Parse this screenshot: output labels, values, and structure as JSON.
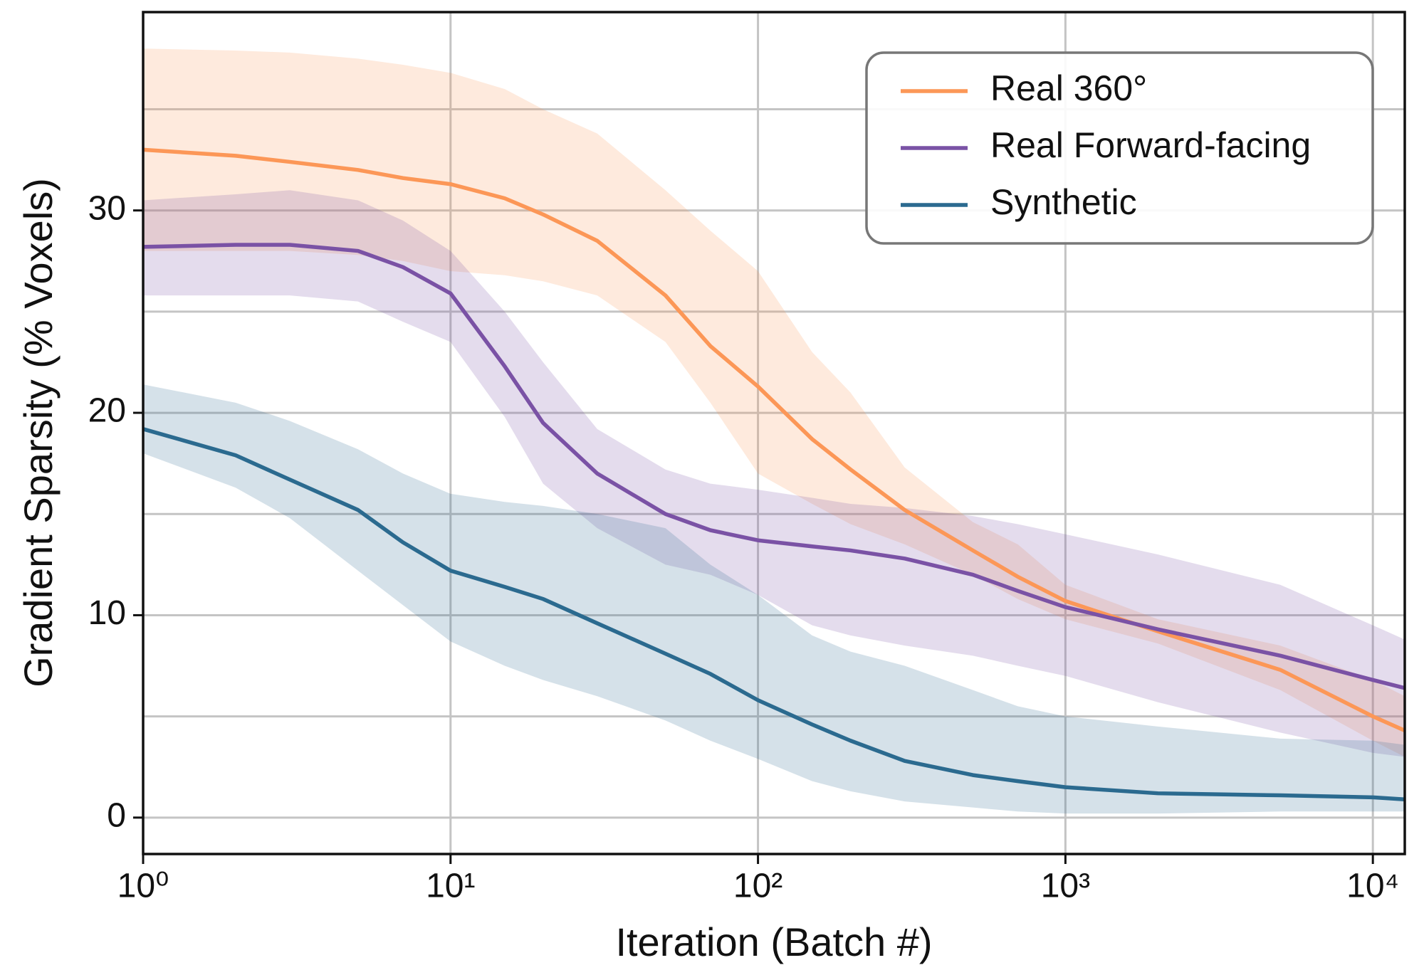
{
  "chart_data": {
    "type": "line",
    "x_label": "Iteration (Batch #)",
    "y_label": "Gradient Sparsity (% Voxels)",
    "x_scale": "log",
    "grid": true,
    "legend": "upper right",
    "xlim": [
      1,
      12700
    ],
    "ylim": [
      -1.8,
      39.8
    ],
    "xticks": [
      {
        "value": 1,
        "label": "10⁰"
      },
      {
        "value": 10,
        "label": "10¹"
      },
      {
        "value": 100,
        "label": "10²"
      },
      {
        "value": 1000,
        "label": "10³"
      },
      {
        "value": 10000,
        "label": "10⁴"
      }
    ],
    "yticks": [
      0,
      10,
      20,
      30
    ],
    "ygrid": [
      0,
      5,
      10,
      15,
      20,
      25,
      30,
      35
    ],
    "x": [
      1,
      2,
      3,
      5,
      7,
      10,
      15,
      20,
      30,
      50,
      70,
      100,
      150,
      200,
      300,
      500,
      700,
      1000,
      2000,
      5000,
      10000,
      12700
    ],
    "series": [
      {
        "name": "Real 360°",
        "color": "#fc9757",
        "values": [
          33,
          32.7,
          32.4,
          32,
          31.6,
          31.3,
          30.6,
          29.8,
          28.5,
          25.8,
          23.3,
          21.3,
          18.7,
          17.2,
          15.2,
          13.2,
          11.9,
          10.7,
          9.2,
          7.3,
          5,
          4.3
        ],
        "upper": [
          38,
          37.9,
          37.8,
          37.5,
          37.2,
          36.8,
          36,
          35,
          33.8,
          31,
          29,
          27,
          23,
          21,
          17.3,
          14.6,
          13.5,
          11.5,
          9.8,
          8.5,
          6.8,
          6
        ],
        "lower": [
          28,
          28,
          28,
          27.8,
          27.5,
          27,
          26.8,
          26.5,
          25.8,
          23.5,
          20.5,
          17,
          15.5,
          14.5,
          13.5,
          12,
          10.8,
          9.8,
          8.6,
          6.3,
          3.8,
          3
        ]
      },
      {
        "name": "Real Forward-facing",
        "color": "#7a52a5",
        "values": [
          28.2,
          28.3,
          28.3,
          28,
          27.2,
          25.9,
          22.3,
          19.5,
          17,
          15,
          14.2,
          13.7,
          13.4,
          13.2,
          12.8,
          12,
          11.2,
          10.4,
          9.3,
          8,
          6.8,
          6.4
        ],
        "upper": [
          30.5,
          30.8,
          31,
          30.5,
          29.5,
          28,
          25,
          22.5,
          19.2,
          17.2,
          16.5,
          16.2,
          15.8,
          15.5,
          15.3,
          14.9,
          14.5,
          14,
          13,
          11.5,
          9.5,
          8.8
        ],
        "lower": [
          25.8,
          25.8,
          25.8,
          25.5,
          24.5,
          23.5,
          19.8,
          16.5,
          14.3,
          12.5,
          12,
          11,
          9.5,
          9,
          8.5,
          8,
          7.5,
          7,
          5.7,
          4.2,
          3.2,
          3
        ]
      },
      {
        "name": "Synthetic",
        "color": "#2b6a8f",
        "values": [
          19.2,
          17.9,
          16.7,
          15.2,
          13.6,
          12.2,
          11.4,
          10.8,
          9.6,
          8.1,
          7.1,
          5.8,
          4.6,
          3.8,
          2.8,
          2.1,
          1.8,
          1.5,
          1.2,
          1.1,
          1,
          0.9
        ],
        "upper": [
          21.4,
          20.5,
          19.6,
          18.2,
          17,
          16,
          15.6,
          15.4,
          15,
          14.3,
          12.5,
          11,
          9,
          8.2,
          7.5,
          6.3,
          5.5,
          5,
          4.5,
          3.9,
          3.8,
          3.6
        ],
        "lower": [
          18,
          16.3,
          14.8,
          12.2,
          10.5,
          8.7,
          7.5,
          6.8,
          6,
          4.8,
          3.8,
          2.9,
          1.8,
          1.3,
          0.8,
          0.5,
          0.3,
          0.2,
          0.2,
          0.3,
          0.3,
          0.3
        ]
      }
    ]
  }
}
